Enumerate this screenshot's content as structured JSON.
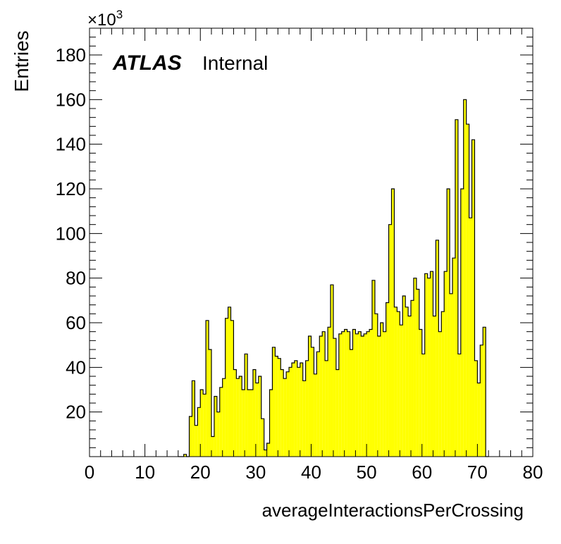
{
  "chart_data": {
    "type": "bar",
    "title": "",
    "xlabel": "averageInteractionsPerCrossing",
    "ylabel": "Entries",
    "y_multiplier": "×10",
    "y_multiplier_exp": "3",
    "atlas_label": "ATLAS",
    "atlas_status": "Internal",
    "xlim": [
      0,
      80
    ],
    "ylim": [
      0,
      192
    ],
    "bin_width": 0.5,
    "x_ticks": [
      0,
      10,
      20,
      30,
      40,
      50,
      60,
      70,
      80
    ],
    "y_ticks": [
      20,
      40,
      60,
      80,
      100,
      120,
      140,
      160,
      180
    ],
    "fill_color": "#ffff00",
    "line_color": "#000000",
    "bins_start": 16.0,
    "values": [
      0,
      0,
      1,
      0,
      18,
      34,
      14,
      22,
      30,
      28,
      61,
      48,
      9,
      27,
      20,
      31,
      35,
      62,
      67,
      61,
      39,
      35,
      36,
      30,
      46,
      30,
      30,
      39,
      33,
      36,
      17,
      3,
      6,
      30,
      49,
      45,
      44,
      39,
      35,
      38,
      40,
      42,
      43,
      40,
      42,
      34,
      43,
      54,
      49,
      37,
      47,
      54,
      56,
      43,
      58,
      77,
      53,
      39,
      55,
      56,
      57,
      56,
      48,
      57,
      55,
      56,
      54,
      55,
      56,
      57,
      79,
      64,
      54,
      60,
      56,
      69,
      104,
      120,
      67,
      65,
      59,
      72,
      67,
      63,
      70,
      80,
      75,
      57,
      46,
      82,
      80,
      83,
      63,
      97,
      56,
      65,
      83,
      120,
      73,
      89,
      151,
      46,
      120,
      160,
      149,
      107,
      142,
      43,
      33,
      50,
      58,
      0
    ]
  }
}
